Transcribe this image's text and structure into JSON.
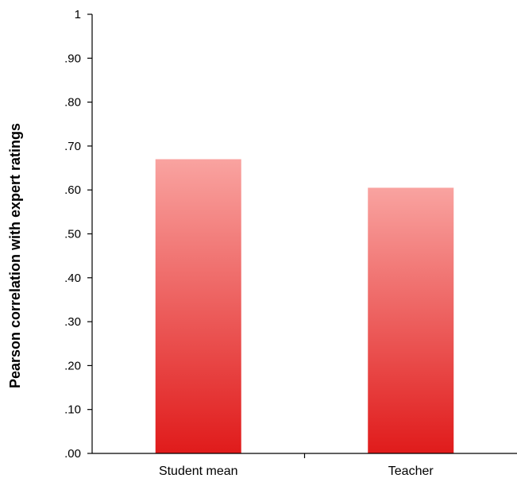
{
  "chart_data": {
    "type": "bar",
    "title": "",
    "xlabel": "",
    "ylabel": "Pearson correlation with expert ratings",
    "categories": [
      "Student mean",
      "Teacher"
    ],
    "values": [
      0.67,
      0.605
    ],
    "ylim": [
      0,
      1
    ],
    "yticks": [
      {
        "value": 0,
        "label": ".00"
      },
      {
        "value": 0.1,
        "label": ".10"
      },
      {
        "value": 0.2,
        "label": ".20"
      },
      {
        "value": 0.3,
        "label": ".30"
      },
      {
        "value": 0.4,
        "label": ".40"
      },
      {
        "value": 0.5,
        "label": ".50"
      },
      {
        "value": 0.6,
        "label": ".60"
      },
      {
        "value": 0.7,
        "label": ".70"
      },
      {
        "value": 0.8,
        "label": ".80"
      },
      {
        "value": 0.9,
        "label": ".90"
      },
      {
        "value": 1,
        "label": "1"
      }
    ],
    "grid": false,
    "legend": "none",
    "colors": {
      "bar_top": "#f9a3a0",
      "bar_bottom": "#e01b1b",
      "axis": "#000000"
    }
  }
}
